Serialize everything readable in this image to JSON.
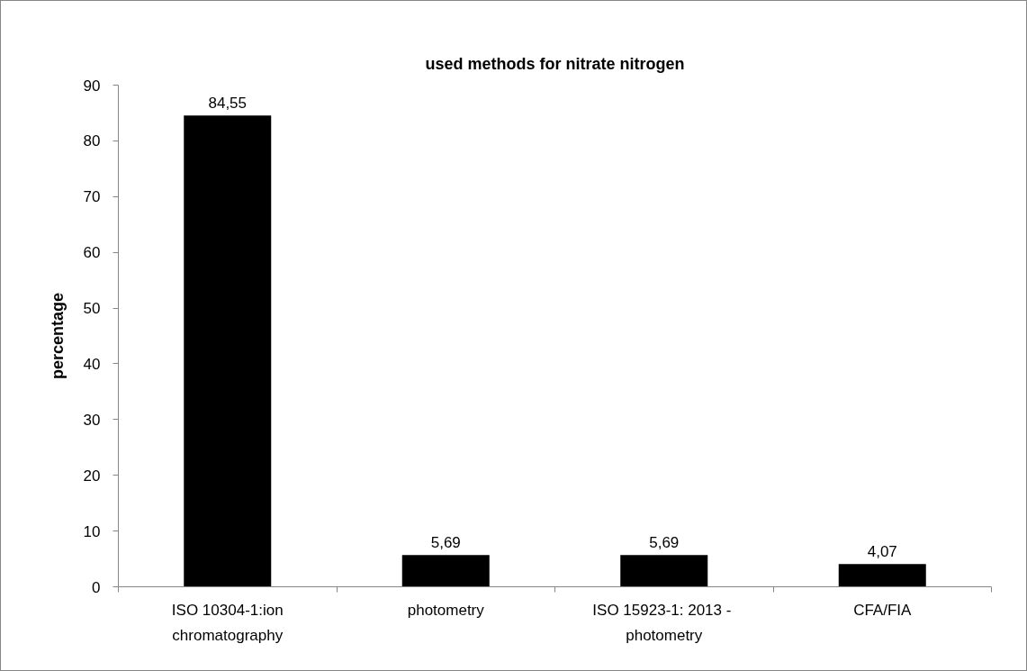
{
  "chart_data": {
    "type": "bar",
    "title": "used methods for nitrate nitrogen",
    "ylabel": "percentage",
    "categories": [
      "ISO 10304-1:ion chromatography",
      "photometry",
      "ISO 15923-1: 2013  - photometry",
      "CFA/FIA"
    ],
    "values": [
      84.55,
      5.69,
      5.69,
      4.07
    ],
    "color": "#000000",
    "value_labels": [
      "84,55",
      "5,69",
      "5,69",
      "4,07"
    ],
    "ylim": [
      0,
      90
    ],
    "yticks": [
      0,
      10,
      20,
      30,
      40,
      50,
      60,
      70,
      80,
      90
    ]
  }
}
